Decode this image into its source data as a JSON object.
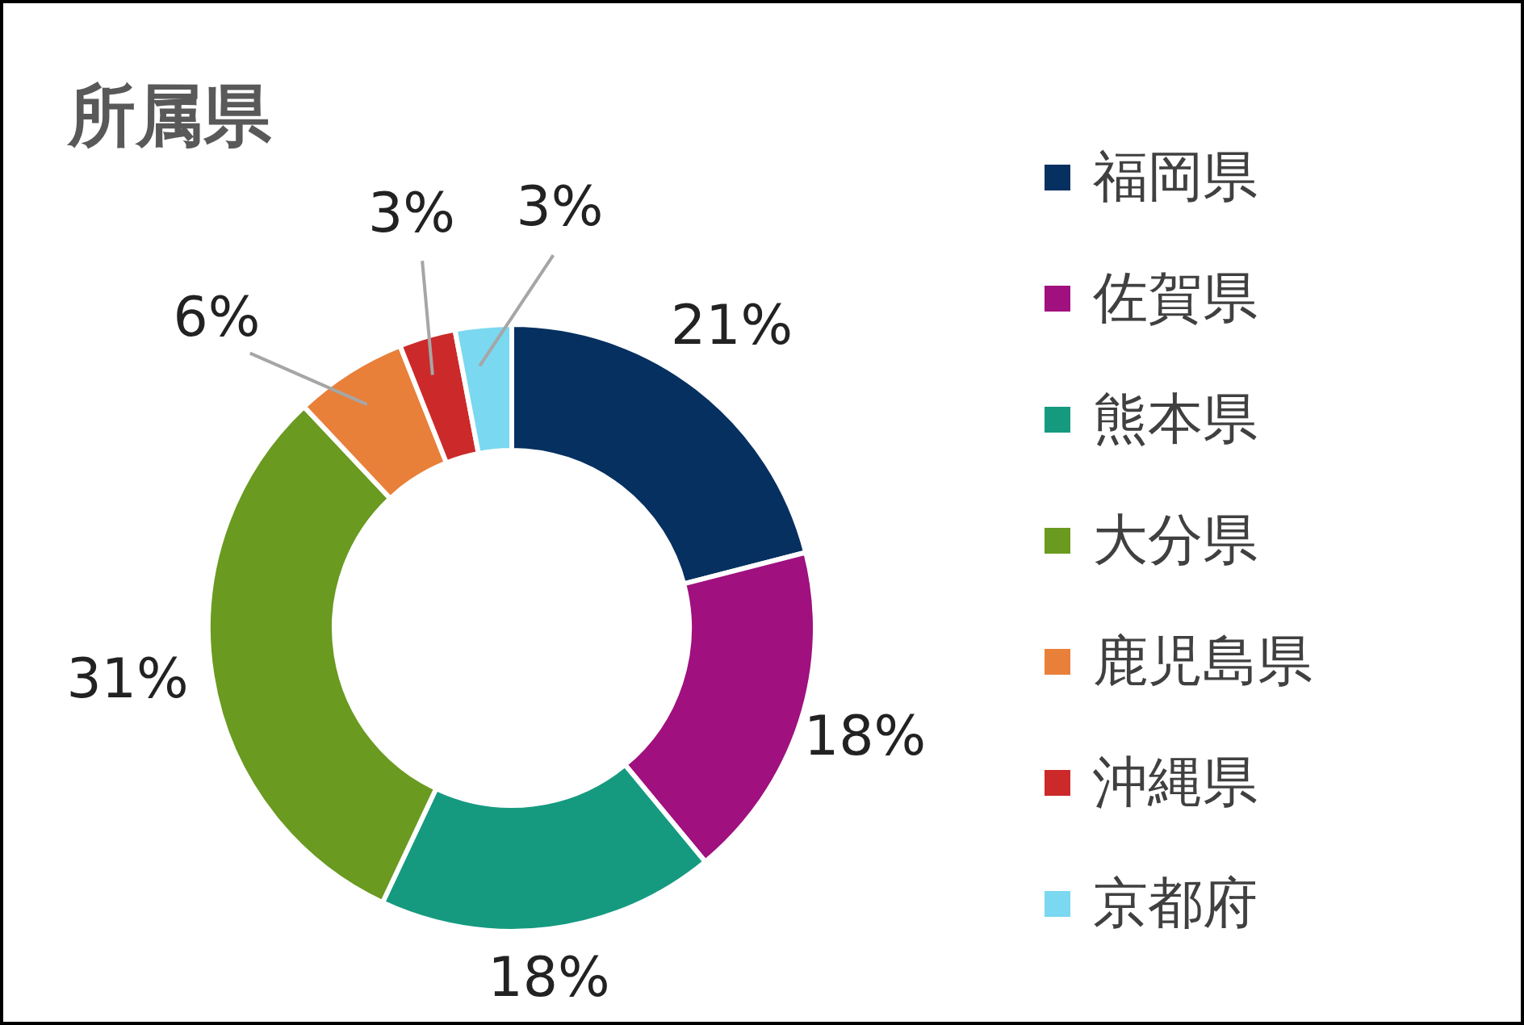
{
  "chart_data": {
    "type": "donut",
    "title": "所属県",
    "categories": [
      "福岡県",
      "佐賀県",
      "熊本県",
      "大分県",
      "鹿児島県",
      "沖縄県",
      "京都府"
    ],
    "values": [
      21,
      18,
      18,
      31,
      6,
      3,
      3
    ],
    "value_labels": [
      "21%",
      "18%",
      "18%",
      "31%",
      "6%",
      "3%",
      "3%"
    ],
    "colors": [
      "#063060",
      "#a0107e",
      "#159a80",
      "#6a9a20",
      "#e8803a",
      "#cc2a2a",
      "#7ad8f0"
    ],
    "legend": "right"
  }
}
